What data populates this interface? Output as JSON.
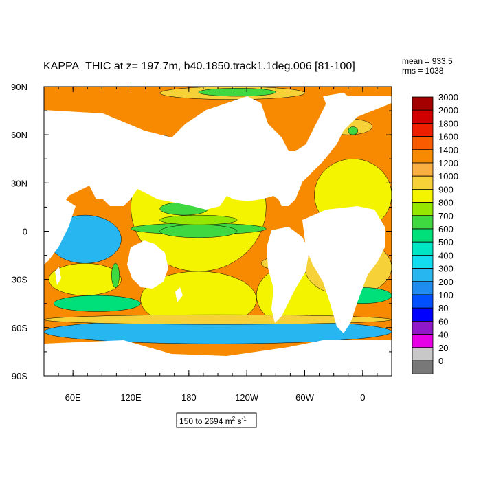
{
  "chart_data": {
    "type": "heatmap",
    "title": "KAPPA_THIC at z= 197.7m, b40.1850.track1.1deg.006 [81-100]",
    "stats": {
      "mean": "mean = 933.5",
      "rms": "rms = 1038"
    },
    "range_label": {
      "main": "150 to 2694 m",
      "sup1": "2",
      "mid": " s",
      "sup2": "-1"
    },
    "x_ticks": [
      {
        "lon": 60,
        "label": "60E"
      },
      {
        "lon": 120,
        "label": "120E"
      },
      {
        "lon": 180,
        "label": "180"
      },
      {
        "lon": 240,
        "label": "120W"
      },
      {
        "lon": 300,
        "label": "60W"
      },
      {
        "lon": 360,
        "label": "0"
      }
    ],
    "y_ticks": [
      {
        "lat": 90,
        "label": "90N"
      },
      {
        "lat": 60,
        "label": "60N"
      },
      {
        "lat": 30,
        "label": "30N"
      },
      {
        "lat": 0,
        "label": "0"
      },
      {
        "lat": -30,
        "label": "30S"
      },
      {
        "lat": -60,
        "label": "60S"
      },
      {
        "lat": -90,
        "label": "90S"
      }
    ],
    "xlim": [
      30,
      390
    ],
    "ylim": [
      -90,
      90
    ],
    "colorbar": {
      "labels": [
        "3000",
        "2000",
        "1800",
        "1600",
        "1400",
        "1200",
        "1000",
        "900",
        "800",
        "700",
        "600",
        "500",
        "400",
        "300",
        "200",
        "100",
        "80",
        "60",
        "40",
        "20",
        "0"
      ],
      "colors": [
        "#a50000",
        "#d10000",
        "#ee1e00",
        "#f95c00",
        "#f78a00",
        "#f9b040",
        "#f6d238",
        "#f4f400",
        "#95e600",
        "#40d840",
        "#00e07a",
        "#00e6c4",
        "#14dcf0",
        "#28b6f0",
        "#1e8cf0",
        "#0050ff",
        "#0000ff",
        "#9018c8",
        "#e600e6",
        "#c8c8c8",
        "#787878"
      ]
    },
    "regions": [
      {
        "level": 7,
        "lon": [
          120,
          260
        ],
        "lat": [
          -25,
          55
        ]
      },
      {
        "level": 9,
        "lon": [
          120,
          260
        ],
        "lat": [
          -2,
          5
        ]
      },
      {
        "level": 7,
        "lon": [
          130,
          250
        ],
        "lat": [
          -60,
          -25
        ]
      },
      {
        "level": 7,
        "lon": [
          250,
          340
        ],
        "lat": [
          -60,
          -20
        ]
      },
      {
        "level": 6,
        "lon": [
          255,
          320
        ],
        "lat": [
          -25,
          -15
        ]
      },
      {
        "level": 9,
        "lon": [
          270,
          300
        ],
        "lat": [
          -23,
          -17
        ]
      },
      {
        "level": 8,
        "lon": [
          190,
          215
        ],
        "lat": [
          20,
          35
        ]
      },
      {
        "level": 9,
        "lon": [
          150,
          200
        ],
        "lat": [
          10,
          18
        ]
      },
      {
        "level": 9,
        "lon": [
          150,
          230
        ],
        "lat": [
          -4,
          4
        ]
      },
      {
        "level": 8,
        "lon": [
          150,
          230
        ],
        "lat": [
          4,
          10
        ]
      },
      {
        "level": 13,
        "lon": [
          35,
          110
        ],
        "lat": [
          -20,
          10
        ]
      },
      {
        "level": 7,
        "lon": [
          35,
          110
        ],
        "lat": [
          -40,
          -20
        ]
      },
      {
        "level": 9,
        "lon": [
          100,
          108
        ],
        "lat": [
          -35,
          -20
        ]
      },
      {
        "level": 10,
        "lon": [
          40,
          130
        ],
        "lat": [
          -50,
          -40
        ]
      },
      {
        "level": 13,
        "lon": [
          30,
          390
        ],
        "lat": [
          -70,
          -55
        ]
      },
      {
        "level": 6,
        "lon": [
          30,
          390
        ],
        "lat": [
          -58,
          -52
        ]
      },
      {
        "level": 7,
        "lon": [
          310,
          390
        ],
        "lat": [
          0,
          45
        ]
      },
      {
        "level": 13,
        "lon": [
          300,
          350
        ],
        "lat": [
          -5,
          10
        ]
      },
      {
        "level": 6,
        "lon": [
          300,
          390
        ],
        "lat": [
          -40,
          -5
        ]
      },
      {
        "level": 9,
        "lon": [
          340,
          355
        ],
        "lat": [
          -20,
          -15
        ]
      },
      {
        "level": 10,
        "lon": [
          330,
          390
        ],
        "lat": [
          -45,
          -35
        ]
      },
      {
        "level": 11,
        "lon": [
          120,
          175
        ],
        "lat": [
          35,
          60
        ]
      },
      {
        "level": 11,
        "lon": [
          175,
          220
        ],
        "lat": [
          50,
          60
        ]
      },
      {
        "level": 6,
        "lon": [
          150,
          300
        ],
        "lat": [
          82,
          90
        ]
      },
      {
        "level": 9,
        "lon": [
          190,
          270
        ],
        "lat": [
          84,
          89
        ]
      },
      {
        "level": 6,
        "lon": [
          320,
          370
        ],
        "lat": [
          60,
          70
        ]
      },
      {
        "level": 9,
        "lon": [
          345,
          355
        ],
        "lat": [
          60,
          65
        ]
      }
    ]
  }
}
